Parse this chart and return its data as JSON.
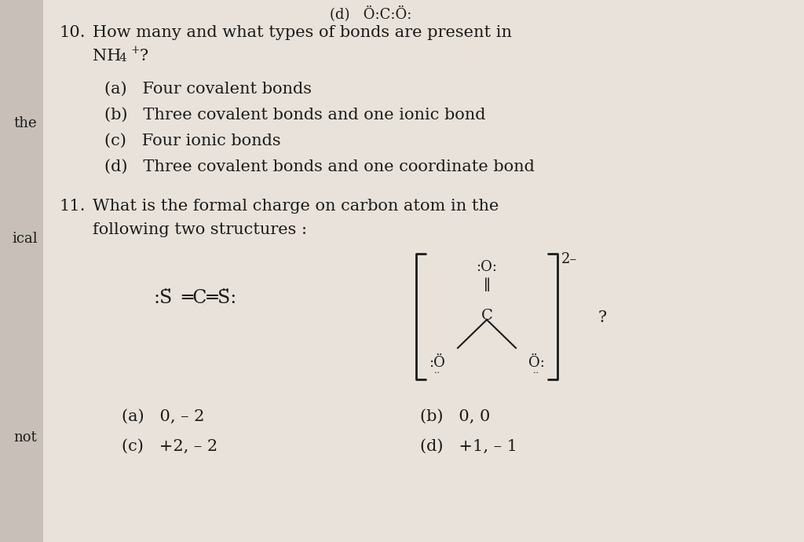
{
  "background_color": "#c8c0b8",
  "content_bg": "#e8e2da",
  "text_color": "#1a1a1a",
  "q10_line1": "How many and what types of bonds are present in",
  "q10_line2_main": "NH",
  "q10_subscript": "4",
  "q10_superscript": "+",
  "q10_end": "?",
  "options_10": [
    "(a)   Four covalent bonds",
    "(b)   Three covalent bonds and one ionic bond",
    "(c)   Four ionic bonds",
    "(d)   Three covalent bonds and one coordinate bond"
  ],
  "q11_line1": "What is the formal charge on carbon atom in the",
  "q11_line2": "following two structures :",
  "side_the": "the",
  "side_ical": "ical",
  "side_not": "not",
  "top_partial": "(d)   Ö:C:Ö:",
  "cs2_formula": ":S̈═C═S̈:",
  "options_11_a": "(a)   0, – 2",
  "options_11_b": "(b)   0, 0",
  "options_11_c": "(c)   +2, – 2",
  "options_11_d": "(d)   +1, – 1",
  "charge_label": "2–"
}
